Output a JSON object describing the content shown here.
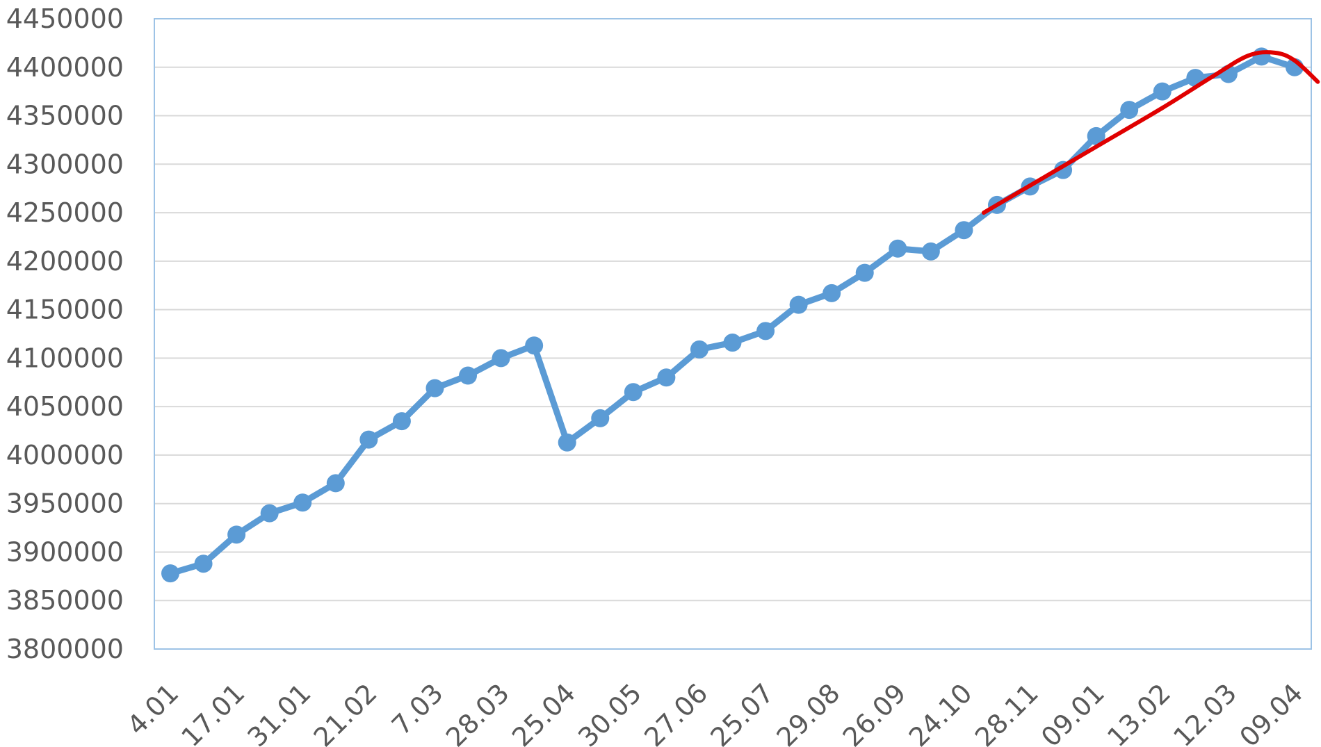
{
  "chart_data": {
    "type": "line",
    "title": "",
    "xlabel": "",
    "ylabel": "",
    "ylim": [
      3800000,
      4450000
    ],
    "y_ticks": [
      3800000,
      3850000,
      3900000,
      3950000,
      4000000,
      4050000,
      4100000,
      4150000,
      4200000,
      4250000,
      4300000,
      4350000,
      4400000,
      4450000
    ],
    "y_tick_labels": [
      "3800000",
      "3850000",
      "3900000",
      "3950000",
      "4000000",
      "4050000",
      "4100000",
      "4150000",
      "4200000",
      "4250000",
      "4300000",
      "4350000",
      "4400000",
      "4450000"
    ],
    "x_tick_labels": [
      "4.01",
      "17.01",
      "31.01",
      "21.02",
      "7.03",
      "28.03",
      "25.04",
      "30.05",
      "27.06",
      "25.07",
      "29.08",
      "26.09",
      "24.10",
      "28.11",
      "09.01",
      "13.02",
      "12.03",
      "09.04"
    ],
    "grid": "horizontal",
    "legend": "none",
    "series": [
      {
        "color": "#5b9bd5",
        "style": "line-with-markers",
        "values": [
          3878000,
          3888000,
          3918000,
          3940000,
          3951000,
          3971000,
          4016000,
          4035000,
          4069000,
          4082000,
          4100000,
          4113000,
          4013000,
          4038000,
          4065000,
          4080000,
          4109000,
          4116000,
          4128000,
          4155000,
          4167000,
          4188000,
          4213000,
          4210000,
          4232000,
          4258000,
          4277000,
          4294000,
          4329000,
          4356000,
          4375000,
          4389000,
          4393000,
          4411000,
          4400000
        ]
      },
      {
        "color": "#e00000",
        "style": "smooth-line",
        "x_positions": [
          24.6,
          26.0,
          28.0,
          30.0,
          31.5,
          32.6,
          33.4,
          34.0,
          34.7
        ],
        "values": [
          4250000,
          4278000,
          4318000,
          4358000,
          4390000,
          4412000,
          4415000,
          4407000,
          4385000
        ]
      }
    ]
  }
}
